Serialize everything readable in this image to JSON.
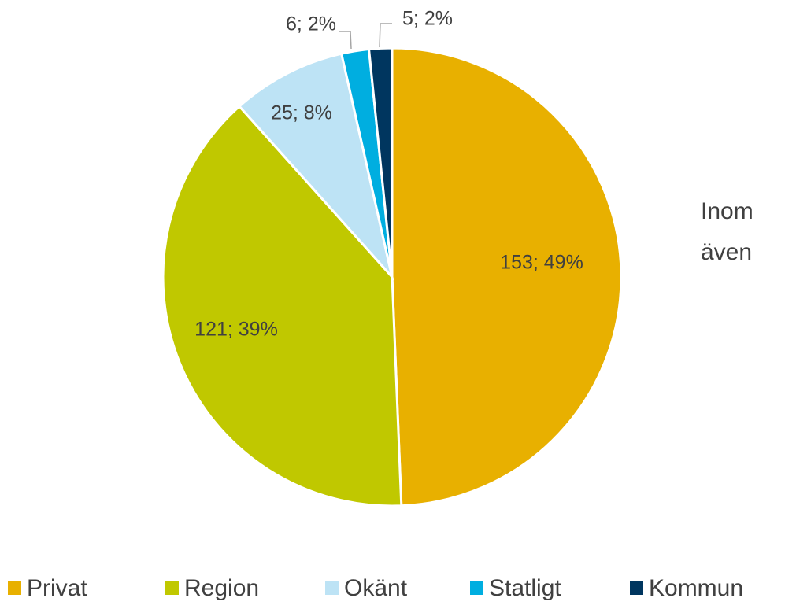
{
  "chart_data": {
    "type": "pie",
    "categories": [
      "Privat",
      "Region",
      "Okänt",
      "Statligt",
      "Kommun"
    ],
    "values": [
      153,
      121,
      25,
      6,
      5
    ],
    "value_labels": [
      "153; 49%",
      "121; 39%",
      "25; 8%",
      "6; 2%",
      "5; 2%"
    ],
    "colors": [
      "#e8b000",
      "#c0c800",
      "#bde3f5",
      "#00aee0",
      "#00365f"
    ],
    "legend": "bottom",
    "annotations": [
      "Inom",
      "även"
    ]
  }
}
